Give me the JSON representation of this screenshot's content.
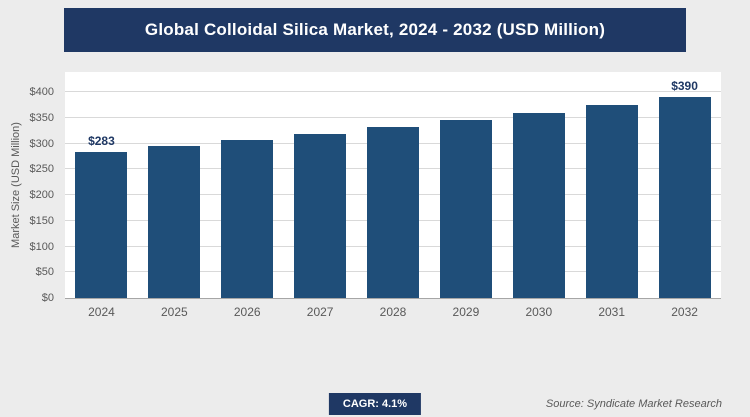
{
  "header": {
    "title": "Global Colloidal Silica Market, 2024 - 2032 (USD Million)"
  },
  "colors": {
    "header_navy": "#1f3864",
    "bar_navy": "#1f4e79",
    "background": "#ececec",
    "plot_background": "#ffffff",
    "gridline": "#d9d9d9",
    "tick_text": "#595959"
  },
  "chart_data": {
    "type": "bar",
    "title": "Global Colloidal Silica Market, 2024 - 2032 (USD Million)",
    "categories": [
      "2024",
      "2025",
      "2026",
      "2027",
      "2028",
      "2029",
      "2030",
      "2031",
      "2032"
    ],
    "values": [
      283,
      295,
      307,
      319,
      332,
      346,
      360,
      375,
      390
    ],
    "xlabel": "",
    "ylabel": "Market Size (USD Million)",
    "ylim": [
      0,
      400
    ],
    "ytick_labels": [
      "$0",
      "$50",
      "$100",
      "$150",
      "$200",
      "$250",
      "$300",
      "$350",
      "$400"
    ],
    "grid": true,
    "legend": "none",
    "annotations": [
      {
        "index": 0,
        "label": "$283"
      },
      {
        "index": 8,
        "label": "$390"
      }
    ]
  },
  "footer": {
    "cagr_label": "CAGR: 4.1%",
    "source": "Source: Syndicate Market Research"
  }
}
